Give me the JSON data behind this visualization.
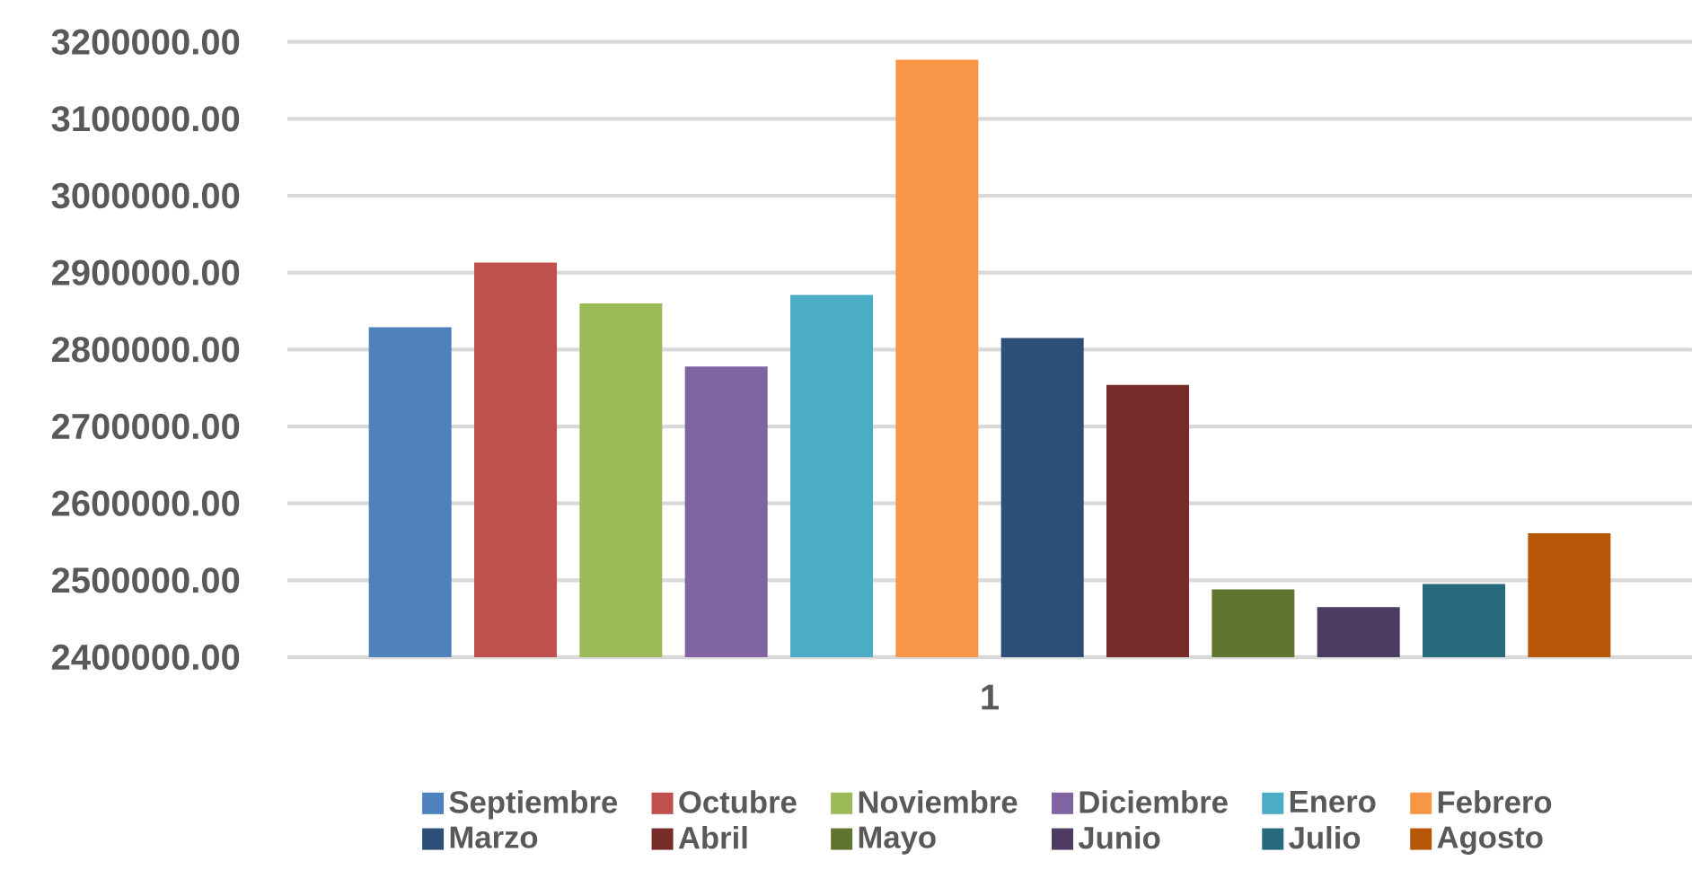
{
  "chart_data": {
    "type": "bar",
    "categories": [
      "1"
    ],
    "series": [
      {
        "name": "Septiembre",
        "color": "#4f81bd",
        "values": [
          2829000
        ]
      },
      {
        "name": "Octubre",
        "color": "#c0504d",
        "values": [
          2913000
        ]
      },
      {
        "name": "Noviembre",
        "color": "#9bbb59",
        "values": [
          2860000
        ]
      },
      {
        "name": "Diciembre",
        "color": "#8064a2",
        "values": [
          2778000
        ]
      },
      {
        "name": "Enero",
        "color": "#4bacc6",
        "values": [
          2871000
        ]
      },
      {
        "name": "Febrero",
        "color": "#f79646",
        "values": [
          3177000
        ]
      },
      {
        "name": "Marzo",
        "color": "#2c4f77",
        "values": [
          2815000
        ]
      },
      {
        "name": "Abril",
        "color": "#772c2a",
        "values": [
          2754000
        ]
      },
      {
        "name": "Mayo",
        "color": "#5f7530",
        "values": [
          2488000
        ]
      },
      {
        "name": "Junio",
        "color": "#4d3b62",
        "values": [
          2465000
        ]
      },
      {
        "name": "Julio",
        "color": "#276a7c",
        "values": [
          2495000
        ]
      },
      {
        "name": "Agosto",
        "color": "#b65708",
        "values": [
          2561000
        ]
      }
    ],
    "ylim": [
      2400000,
      3200000
    ],
    "yticks": [
      {
        "value": 2400000,
        "label": "2400000.00"
      },
      {
        "value": 2500000,
        "label": "2500000.00"
      },
      {
        "value": 2600000,
        "label": "2600000.00"
      },
      {
        "value": 2700000,
        "label": "2700000.00"
      },
      {
        "value": 2800000,
        "label": "2800000.00"
      },
      {
        "value": 2900000,
        "label": "2900000.00"
      },
      {
        "value": 3000000,
        "label": "3000000.00"
      },
      {
        "value": 3100000,
        "label": "3100000.00"
      },
      {
        "value": 3200000,
        "label": "3200000.00"
      }
    ],
    "grid": "y",
    "legend": "bottom"
  }
}
